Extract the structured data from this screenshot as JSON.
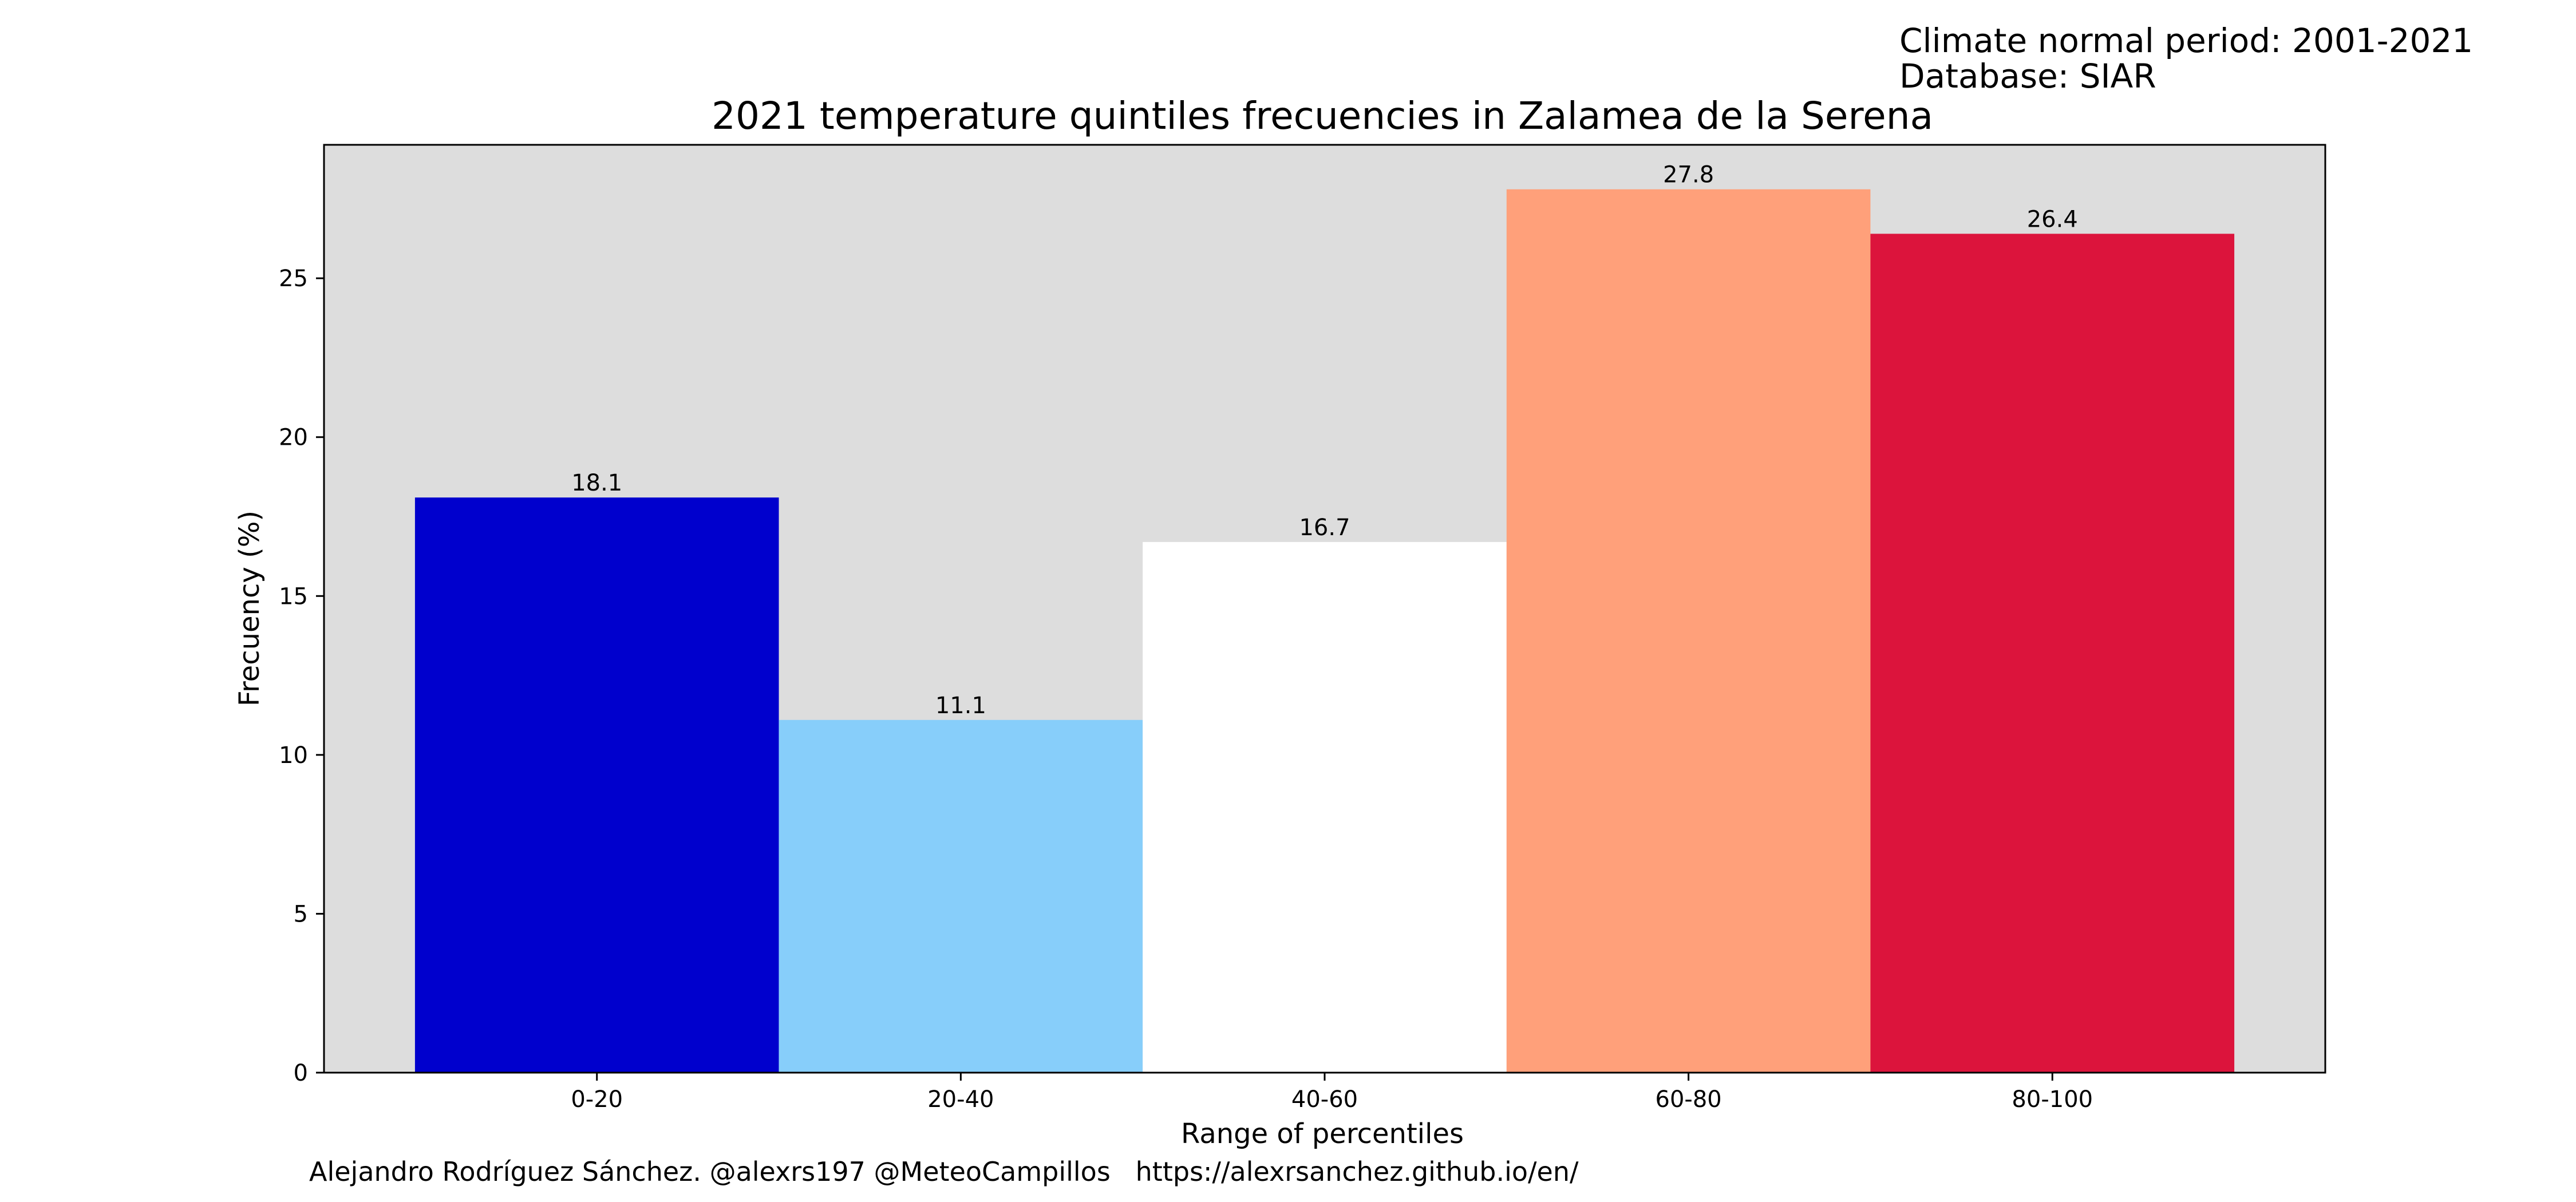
{
  "header": {
    "climate_normal": "Climate normal period: 2001-2021",
    "database": "Database: SIAR"
  },
  "footer": {
    "credit": "Alejandro Rodríguez Sánchez. @alexrs197 @MeteoCampillos   https://alexrsanchez.github.io/en/"
  },
  "chart_data": {
    "type": "bar",
    "title": "2021 temperature quintiles frecuencies in Zalamea de la Serena",
    "xlabel": "Range of percentiles",
    "ylabel": "Frecuency (%)",
    "categories": [
      "0-20",
      "20-40",
      "40-60",
      "60-80",
      "80-100"
    ],
    "values": [
      18.1,
      11.1,
      16.7,
      27.8,
      26.4
    ],
    "data_labels": [
      "18.1",
      "11.1",
      "16.7",
      "27.8",
      "26.4"
    ],
    "colors": [
      "#0000cd",
      "#87cefa",
      "#ffffff",
      "#ffa07a",
      "#dc143c"
    ],
    "ylim": [
      0,
      29.2
    ],
    "yticks": [
      0,
      5,
      10,
      15,
      20,
      25
    ],
    "plot_background": "#dddddd",
    "grid": false,
    "legend": "none"
  }
}
